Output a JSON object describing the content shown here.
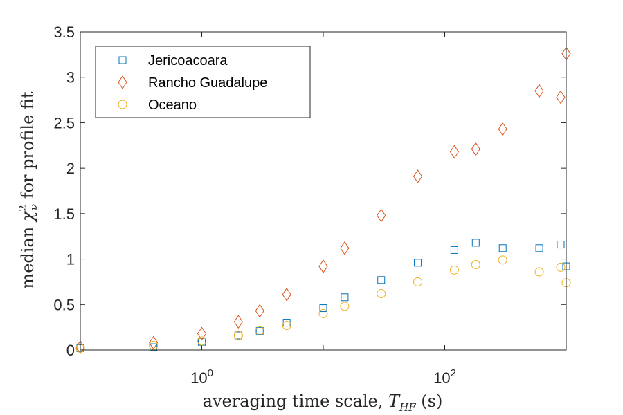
{
  "chart_data": {
    "type": "scatter",
    "x_scale": "log",
    "xlim": [
      0.1,
      1000
    ],
    "ylim": [
      0,
      3.5
    ],
    "x_ticks": [
      1,
      100
    ],
    "x_tick_labels": [
      {
        "base": "10",
        "exp": "0"
      },
      {
        "base": "10",
        "exp": "2"
      }
    ],
    "y_ticks": [
      0,
      0.5,
      1,
      1.5,
      2,
      2.5,
      3,
      3.5
    ],
    "y_tick_labels": [
      "0",
      "0.5",
      "1",
      "1.5",
      "2",
      "2.5",
      "3",
      "3.5"
    ],
    "xlabel": "averaging time scale, T_HF (s)",
    "ylabel": "median χ²_ν for profile fit",
    "legend_position": "top-left",
    "grid": false,
    "x": [
      0.1,
      0.4,
      1,
      2,
      3,
      5,
      10,
      15,
      30,
      60,
      120,
      180,
      300,
      600,
      900,
      1000
    ],
    "series": [
      {
        "name": "Jericoacoara",
        "marker": "square",
        "color": "#0072BD",
        "values": [
          0.02,
          0.03,
          0.09,
          0.16,
          0.21,
          0.3,
          0.46,
          0.58,
          0.77,
          0.96,
          1.1,
          1.18,
          1.12,
          1.12,
          1.16,
          0.92
        ]
      },
      {
        "name": "Rancho Guadalupe",
        "marker": "diamond",
        "color": "#D95319",
        "values": [
          0.03,
          0.08,
          0.18,
          0.31,
          0.43,
          0.61,
          0.92,
          1.12,
          1.48,
          1.91,
          2.18,
          2.21,
          2.43,
          2.85,
          2.78,
          3.26
        ]
      },
      {
        "name": "Oceano",
        "marker": "circle",
        "color": "#EDB120",
        "values": [
          0.02,
          0.05,
          0.1,
          0.16,
          0.21,
          0.27,
          0.4,
          0.48,
          0.62,
          0.75,
          0.88,
          0.94,
          0.99,
          0.86,
          0.91,
          0.74
        ]
      }
    ]
  }
}
